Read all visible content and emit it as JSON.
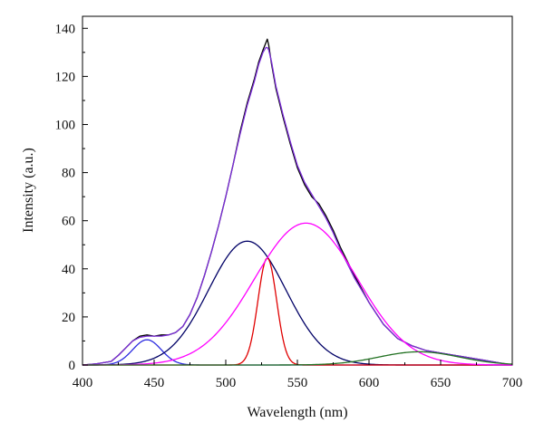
{
  "chart_data": {
    "type": "line",
    "title": "",
    "xlabel": "Wavelength (nm)",
    "ylabel": "Intensity (a.u.)",
    "xlim": [
      400,
      700
    ],
    "ylim": [
      0,
      145
    ],
    "xticks": [
      400,
      450,
      500,
      550,
      600,
      650,
      700
    ],
    "yticks": [
      0,
      20,
      40,
      60,
      80,
      100,
      120,
      140
    ],
    "grid": false,
    "legend": "none",
    "series": [
      {
        "role": "measured-spectrum",
        "color": "#000000",
        "x": [
          400,
          410,
          420,
          425,
          430,
          435,
          440,
          445,
          450,
          455,
          460,
          465,
          470,
          475,
          480,
          485,
          490,
          495,
          500,
          505,
          510,
          515,
          520,
          523,
          526,
          528,
          529,
          530,
          532,
          535,
          540,
          545,
          550,
          555,
          560,
          565,
          570,
          575,
          580,
          590,
          600,
          610,
          620,
          630,
          640,
          650,
          660,
          670,
          680,
          690,
          700
        ],
        "y": [
          0,
          0.5,
          1.5,
          4,
          7,
          10,
          12,
          12.5,
          12,
          12.5,
          12.5,
          13.5,
          16,
          21,
          28,
          37,
          47,
          58,
          70,
          83,
          97,
          109,
          119,
          126,
          131,
          134,
          135.5,
          133,
          125,
          115,
          103,
          92,
          82,
          75,
          70,
          67,
          62,
          56,
          49,
          37,
          26,
          17,
          11,
          8,
          6,
          5,
          4,
          3,
          2,
          1,
          0
        ]
      },
      {
        "role": "fitted-sum",
        "color": "#7a2bd8",
        "x": [
          400,
          410,
          420,
          425,
          430,
          435,
          440,
          445,
          450,
          455,
          460,
          465,
          470,
          475,
          480,
          485,
          490,
          495,
          500,
          505,
          510,
          515,
          520,
          523,
          526,
          528,
          529,
          530,
          532,
          535,
          540,
          545,
          550,
          555,
          560,
          565,
          570,
          575,
          580,
          590,
          600,
          610,
          620,
          630,
          640,
          650,
          660,
          670,
          680,
          690,
          700
        ],
        "y": [
          0,
          0.5,
          1.5,
          4,
          7,
          10,
          11.5,
          12,
          12,
          12,
          12.5,
          13.5,
          16,
          21,
          28,
          37,
          47,
          58,
          70,
          83,
          96,
          108,
          118,
          125,
          130,
          132,
          132,
          131,
          126,
          116,
          104,
          93,
          83,
          76,
          71,
          66,
          61,
          55,
          48,
          36,
          26,
          17,
          11,
          8,
          6,
          5,
          4,
          3,
          2,
          1,
          0
        ]
      },
      {
        "role": "gaussian-component",
        "color": "#2a2ae0",
        "center": 445,
        "amplitude": 10.5,
        "sigma": 10
      },
      {
        "role": "gaussian-component",
        "color": "#000066",
        "center": 515,
        "amplitude": 51.5,
        "sigma": 27
      },
      {
        "role": "gaussian-component",
        "color": "#e00000",
        "center": 529,
        "amplitude": 44.5,
        "sigma": 6.5
      },
      {
        "role": "gaussian-component",
        "color": "#ff00ff",
        "center": 556,
        "amplitude": 59,
        "sigma": 36
      },
      {
        "role": "gaussian-component",
        "color": "#207020",
        "center": 635,
        "amplitude": 5.5,
        "sigma": 28
      }
    ]
  }
}
